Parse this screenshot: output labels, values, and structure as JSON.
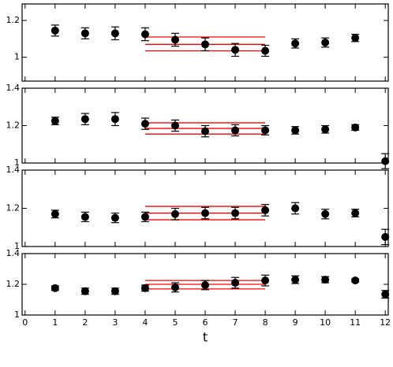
{
  "chart_data": [
    {
      "type": "scatter",
      "x": [
        1,
        2,
        3,
        4,
        5,
        6,
        7,
        8,
        9,
        10,
        11
      ],
      "values": [
        1.145,
        1.13,
        1.13,
        1.125,
        1.095,
        1.07,
        1.04,
        1.035,
        1.075,
        1.08,
        1.105
      ],
      "errors": [
        0.03,
        0.03,
        0.035,
        0.035,
        0.035,
        0.035,
        0.035,
        0.03,
        0.025,
        0.025,
        0.02
      ],
      "color": "#000000",
      "fit_x": [
        4,
        8
      ],
      "fit_values": [
        1.07,
        1.035,
        1.11
      ],
      "fit_color": "#ff0000",
      "xlim": [
        -0.1,
        12.1
      ],
      "xticks": [
        0,
        1,
        2,
        3,
        4,
        5,
        6,
        7,
        8,
        9,
        10,
        11,
        12
      ],
      "ylim": [
        0.87,
        1.29
      ],
      "yticks": [
        1,
        1.2
      ]
    },
    {
      "type": "scatter",
      "x": [
        1,
        2,
        3,
        4,
        5,
        6,
        7,
        8,
        9,
        10,
        11,
        12
      ],
      "values": [
        1.225,
        1.235,
        1.235,
        1.21,
        1.2,
        1.17,
        1.175,
        1.175,
        1.175,
        1.18,
        1.19,
        1.01
      ],
      "errors": [
        0.02,
        0.03,
        0.035,
        0.03,
        0.03,
        0.03,
        0.03,
        0.025,
        0.02,
        0.02,
        0.015,
        0.04
      ],
      "color": "#000000",
      "fit_x": [
        4,
        8
      ],
      "fit_values": [
        1.185,
        1.155,
        1.215
      ],
      "fit_color": "#ff0000",
      "xlim": [
        -0.1,
        12.1
      ],
      "xticks": [
        0,
        1,
        2,
        3,
        4,
        5,
        6,
        7,
        8,
        9,
        10,
        11,
        12
      ],
      "ylim": [
        1.0,
        1.4
      ],
      "yticks": [
        1,
        1.2,
        1.4
      ]
    },
    {
      "type": "scatter",
      "x": [
        1,
        2,
        3,
        4,
        5,
        6,
        7,
        8,
        9,
        10,
        11,
        12
      ],
      "values": [
        1.17,
        1.155,
        1.15,
        1.155,
        1.17,
        1.175,
        1.175,
        1.19,
        1.2,
        1.17,
        1.175,
        1.05
      ],
      "errors": [
        0.02,
        0.025,
        0.025,
        0.025,
        0.03,
        0.03,
        0.03,
        0.03,
        0.03,
        0.025,
        0.02,
        0.04
      ],
      "color": "#000000",
      "fit_x": [
        4,
        8
      ],
      "fit_values": [
        1.175,
        1.14,
        1.21
      ],
      "fit_color": "#ff0000",
      "xlim": [
        -0.1,
        12.1
      ],
      "xticks": [
        0,
        1,
        2,
        3,
        4,
        5,
        6,
        7,
        8,
        9,
        10,
        11,
        12
      ],
      "ylim": [
        1.0,
        1.4
      ],
      "yticks": [
        1,
        1.2,
        1.4
      ]
    },
    {
      "type": "scatter",
      "x": [
        1,
        2,
        3,
        4,
        5,
        6,
        7,
        8,
        9,
        10,
        11,
        12
      ],
      "values": [
        1.175,
        1.155,
        1.155,
        1.175,
        1.18,
        1.195,
        1.21,
        1.225,
        1.23,
        1.23,
        1.225,
        1.135
      ],
      "errors": [
        0.015,
        0.02,
        0.02,
        0.02,
        0.03,
        0.03,
        0.035,
        0.035,
        0.025,
        0.02,
        0.01,
        0.025
      ],
      "color": "#000000",
      "fit_x": [
        4,
        8
      ],
      "fit_values": [
        1.2,
        1.17,
        1.225
      ],
      "fit_color": "#ff0000",
      "xlim": [
        -0.1,
        12.1
      ],
      "xticks": [
        0,
        1,
        2,
        3,
        4,
        5,
        6,
        7,
        8,
        9,
        10,
        11,
        12
      ],
      "ylim": [
        1.0,
        1.4
      ],
      "yticks": [
        1,
        1.2,
        1.4
      ],
      "xlabel": "t"
    }
  ]
}
